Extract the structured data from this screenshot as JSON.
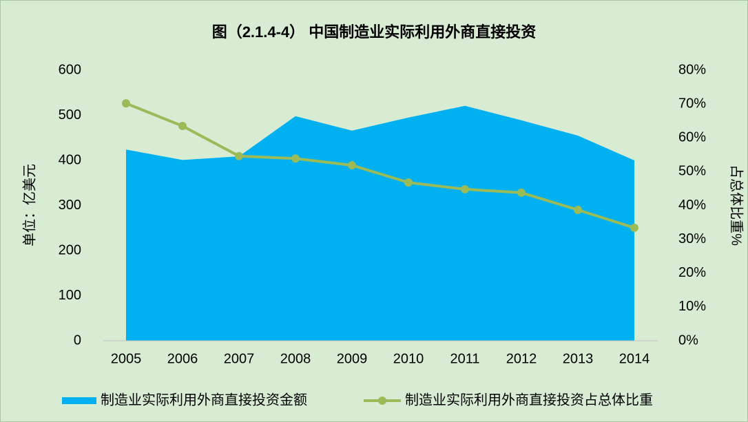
{
  "chart_data": {
    "type": "area_line",
    "title": "图（2.1.4-4） 中国制造业实际利用外商直接投资",
    "ylabel": "单位：亿美元",
    "y2label": "占总体比重%",
    "categories": [
      "2005",
      "2006",
      "2007",
      "2008",
      "2009",
      "2010",
      "2011",
      "2012",
      "2013",
      "2014"
    ],
    "series": [
      {
        "name": "制造业实际利用外商直接投资金额",
        "type": "area",
        "color": "#00b0f0",
        "values": [
          424,
          401,
          409,
          498,
          466,
          495,
          521,
          489,
          455,
          400
        ]
      },
      {
        "name": "制造业实际利用外商直接投资占总体比重",
        "type": "line",
        "axis": "y2",
        "color": "#9bbb59",
        "values": [
          70.2,
          63.5,
          54.6,
          53.9,
          51.9,
          46.8,
          44.8,
          43.8,
          38.7,
          33.4
        ]
      }
    ],
    "ylim": [
      0,
      600
    ],
    "yticks": [
      0,
      100,
      200,
      300,
      400,
      500,
      600
    ],
    "y2lim": [
      0,
      80
    ],
    "y2ticks": [
      {
        "value": 0,
        "label": "0%"
      },
      {
        "value": 10,
        "label": "10%"
      },
      {
        "value": 20,
        "label": "20%"
      },
      {
        "value": 30,
        "label": "30%"
      },
      {
        "value": 40,
        "label": "40%"
      },
      {
        "value": 50,
        "label": "50%"
      },
      {
        "value": 60,
        "label": "60%"
      },
      {
        "value": 70,
        "label": "70%"
      },
      {
        "value": 80,
        "label": "80%"
      }
    ],
    "grid": false,
    "legend": "bottom"
  }
}
